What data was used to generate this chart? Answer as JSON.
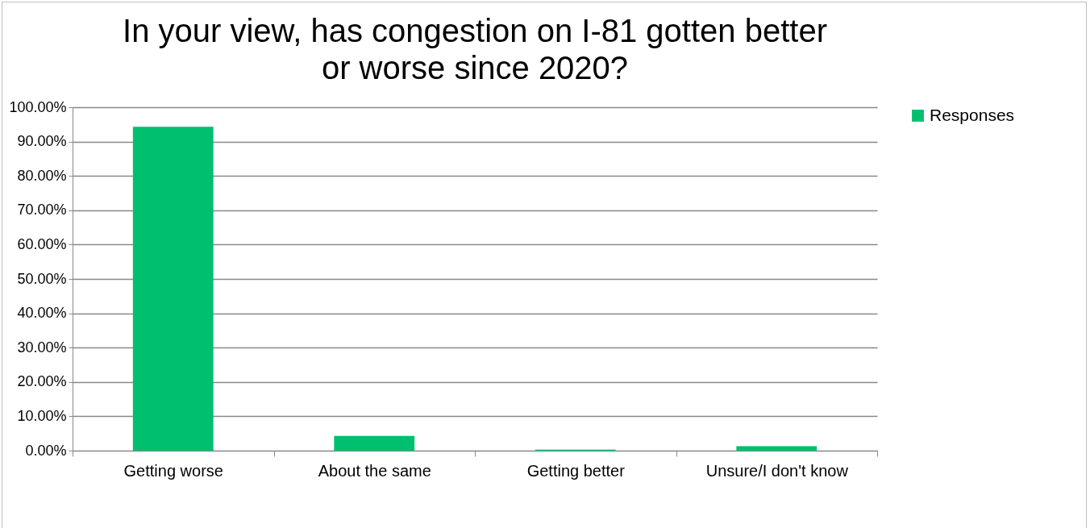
{
  "chart_data": {
    "type": "bar",
    "title": "In your view, has congestion on I-81 gotten better or worse since 2020?",
    "categories": [
      "Getting worse",
      "About the same",
      "Getting better",
      "Unsure/I don't know"
    ],
    "series": [
      {
        "name": "Responses",
        "color": "#00bf6f",
        "values": [
          94.3,
          4.3,
          0.3,
          1.3
        ]
      }
    ],
    "ylim": [
      0,
      100
    ],
    "yticks": [
      {
        "value": 0,
        "label": "0.00%"
      },
      {
        "value": 10,
        "label": "10.00%"
      },
      {
        "value": 20,
        "label": "20.00%"
      },
      {
        "value": 30,
        "label": "30.00%"
      },
      {
        "value": 40,
        "label": "40.00%"
      },
      {
        "value": 50,
        "label": "50.00%"
      },
      {
        "value": 60,
        "label": "60.00%"
      },
      {
        "value": 70,
        "label": "70.00%"
      },
      {
        "value": 80,
        "label": "80.00%"
      },
      {
        "value": 90,
        "label": "90.00%"
      },
      {
        "value": 100,
        "label": "100.00%"
      }
    ],
    "grid": "y",
    "legend": "right"
  }
}
